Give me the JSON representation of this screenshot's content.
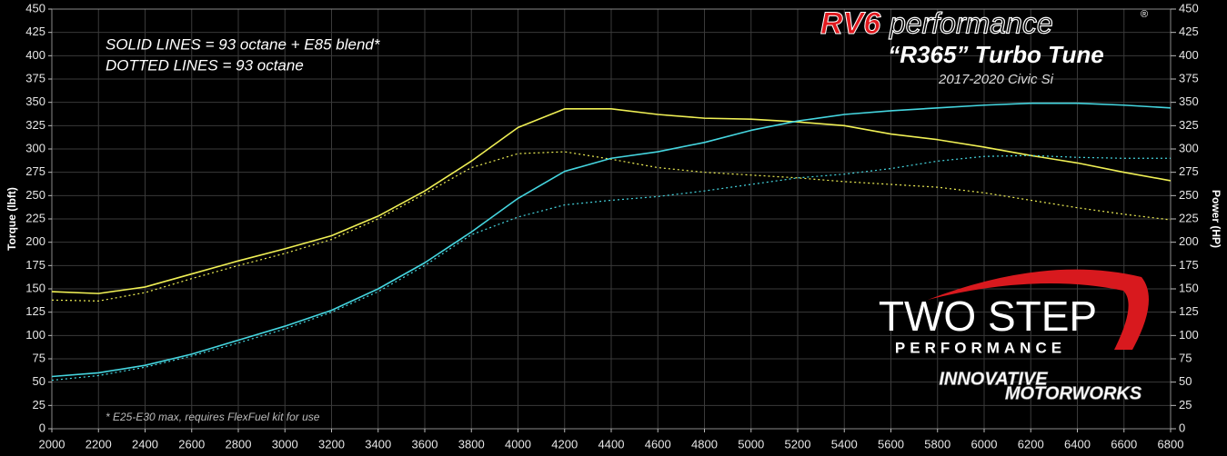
{
  "chart_data": {
    "type": "line",
    "title": "“R365” Turbo Tune",
    "subtitle": "2017-2020 Civic Si",
    "y_label": "Torque (lbft)",
    "y2_label": "Power (HP)",
    "annotations": [
      "SOLID LINES = 93 octane + E85 blend*",
      "DOTTED LINES = 93 octane",
      "* E25-E30 max, requires FlexFuel kit for use"
    ],
    "logos": {
      "rv6": "RV6",
      "performance": "performance",
      "registered": "®",
      "two_step": "TWO STEP",
      "two_step_sub": "PERFORMANCE",
      "innovative": "INNOVATIVE",
      "motorworks": "MOTORWORKS"
    },
    "x": [
      2000,
      2200,
      2400,
      2600,
      2800,
      3000,
      3200,
      3400,
      3600,
      3800,
      4000,
      4200,
      4400,
      4600,
      4800,
      5000,
      5200,
      5400,
      5600,
      5800,
      6000,
      6200,
      6400,
      6600,
      6800
    ],
    "series": [
      {
        "color": "#f0f055",
        "dash": false,
        "values": [
          147,
          145,
          152,
          166,
          180,
          193,
          207,
          228,
          255,
          287,
          323,
          343,
          343,
          337,
          333,
          332,
          329,
          325,
          316,
          310,
          302,
          293,
          285,
          275,
          266
        ]
      },
      {
        "color": "#f0f055",
        "dash": true,
        "values": [
          138,
          137,
          146,
          161,
          175,
          188,
          203,
          225,
          252,
          280,
          295,
          297,
          289,
          280,
          275,
          272,
          269,
          265,
          262,
          259,
          253,
          245,
          237,
          230,
          224
        ]
      },
      {
        "color": "#45d6e0",
        "dash": false,
        "axis": "y2",
        "values": [
          56,
          60,
          68,
          80,
          95,
          110,
          127,
          150,
          178,
          211,
          247,
          276,
          290,
          297,
          307,
          320,
          330,
          337,
          341,
          344,
          347,
          349,
          349,
          347,
          344
        ]
      },
      {
        "color": "#45d6e0",
        "dash": true,
        "axis": "y2",
        "values": [
          52,
          57,
          66,
          78,
          92,
          107,
          125,
          147,
          175,
          208,
          227,
          240,
          245,
          249,
          255,
          262,
          269,
          273,
          279,
          287,
          292,
          293,
          291,
          290,
          290
        ]
      }
    ],
    "xlim": [
      2000,
      6800
    ],
    "xticks": [
      2000,
      2200,
      2400,
      2600,
      2800,
      3000,
      3200,
      3400,
      3600,
      3800,
      4000,
      4200,
      4400,
      4600,
      4800,
      5000,
      5200,
      5400,
      5600,
      5800,
      6000,
      6200,
      6400,
      6600,
      6800
    ],
    "ylim": [
      0,
      450
    ],
    "yticks": [
      0,
      25,
      50,
      75,
      100,
      125,
      150,
      175,
      200,
      225,
      250,
      275,
      300,
      325,
      350,
      375,
      400,
      425,
      450
    ],
    "y2lim": [
      0,
      450
    ],
    "y2ticks": [
      0,
      25,
      50,
      75,
      100,
      125,
      150,
      175,
      200,
      225,
      250,
      275,
      300,
      325,
      350,
      375,
      400,
      425,
      450
    ],
    "grid": true
  }
}
